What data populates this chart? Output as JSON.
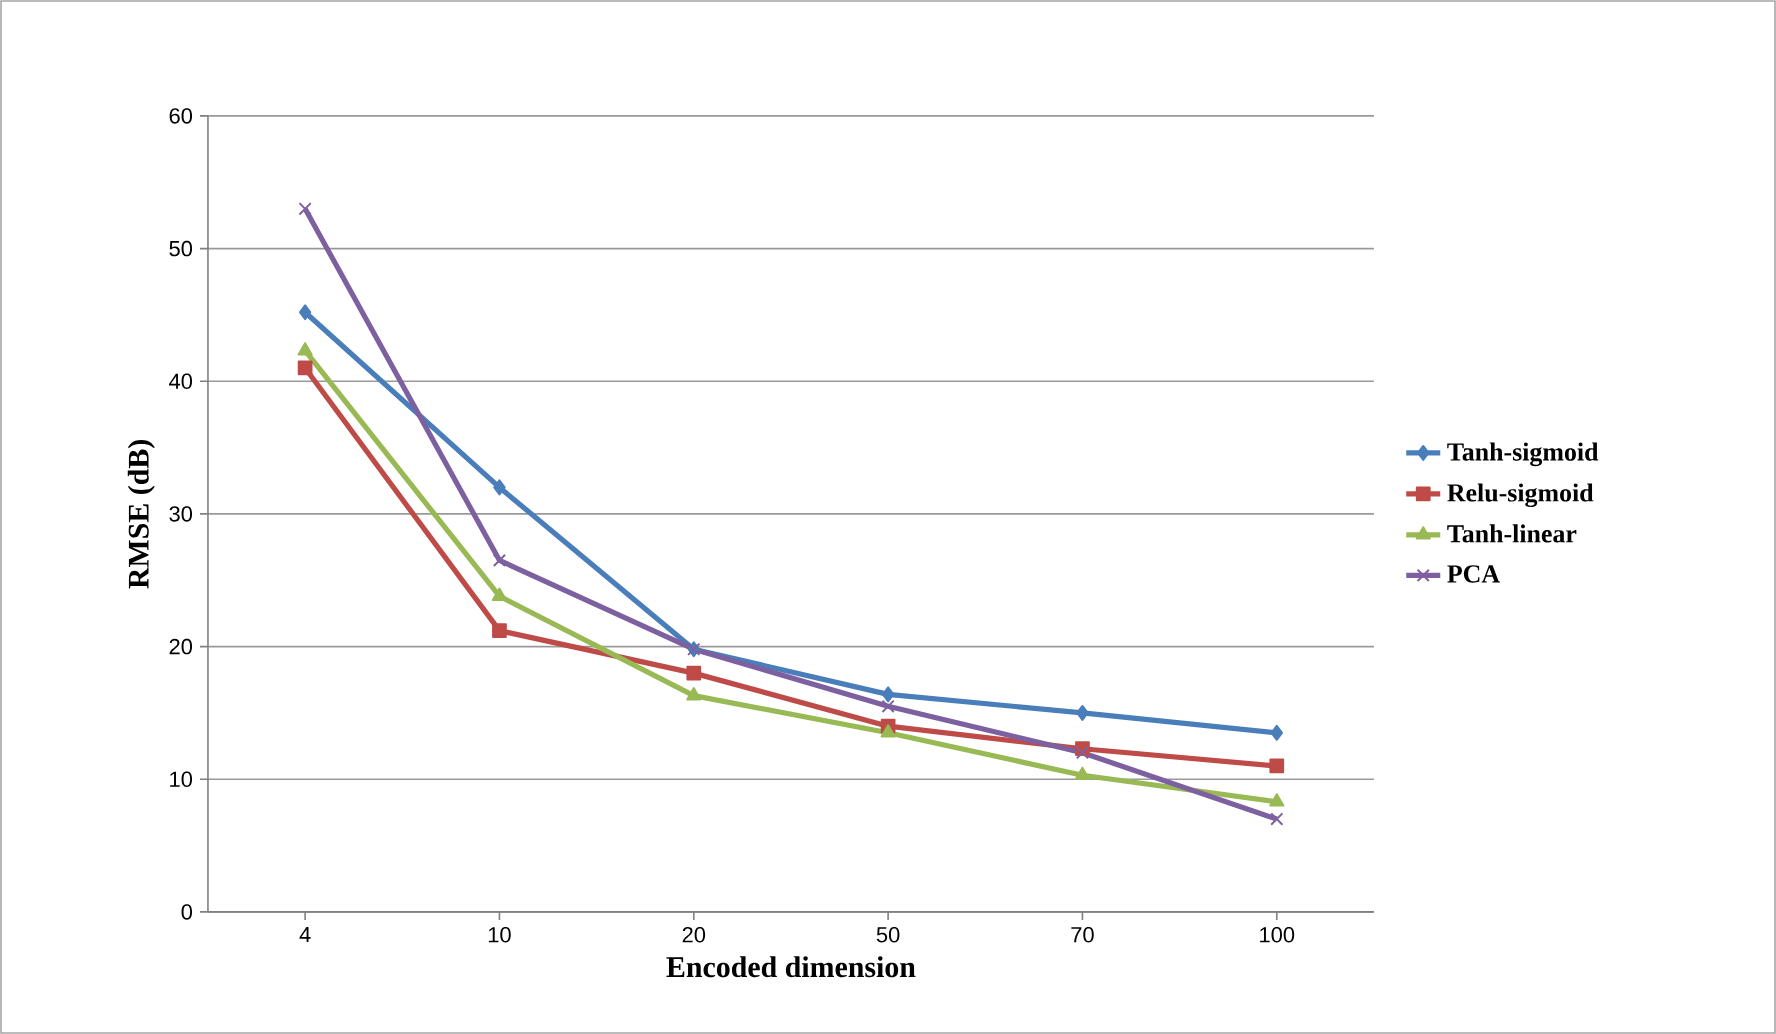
{
  "chart_data": {
    "type": "line",
    "xlabel": "Encoded dimension",
    "ylabel": "RMSE (dB)",
    "categories": [
      "4",
      "10",
      "20",
      "50",
      "70",
      "100"
    ],
    "ylim": [
      0,
      60
    ],
    "yticks": [
      0,
      10,
      20,
      30,
      40,
      50,
      60
    ],
    "grid": "y",
    "legend": "right",
    "series": [
      {
        "name": "Tanh-sigmoid",
        "color": "#4a7ebb",
        "marker": "diamond",
        "values": [
          45.2,
          32,
          19.8,
          16.4,
          15,
          13.5
        ]
      },
      {
        "name": "Relu-sigmoid",
        "color": "#be4b48",
        "marker": "square",
        "values": [
          41,
          21.2,
          18,
          14,
          12.3,
          11
        ]
      },
      {
        "name": "Tanh-linear",
        "color": "#98b954",
        "marker": "triangle",
        "values": [
          42.3,
          23.8,
          16.3,
          13.5,
          10.3,
          8.3
        ]
      },
      {
        "name": "PCA",
        "color": "#7d60a0",
        "marker": "cross",
        "values": [
          53,
          26.5,
          19.8,
          15.5,
          12,
          7
        ]
      }
    ]
  }
}
